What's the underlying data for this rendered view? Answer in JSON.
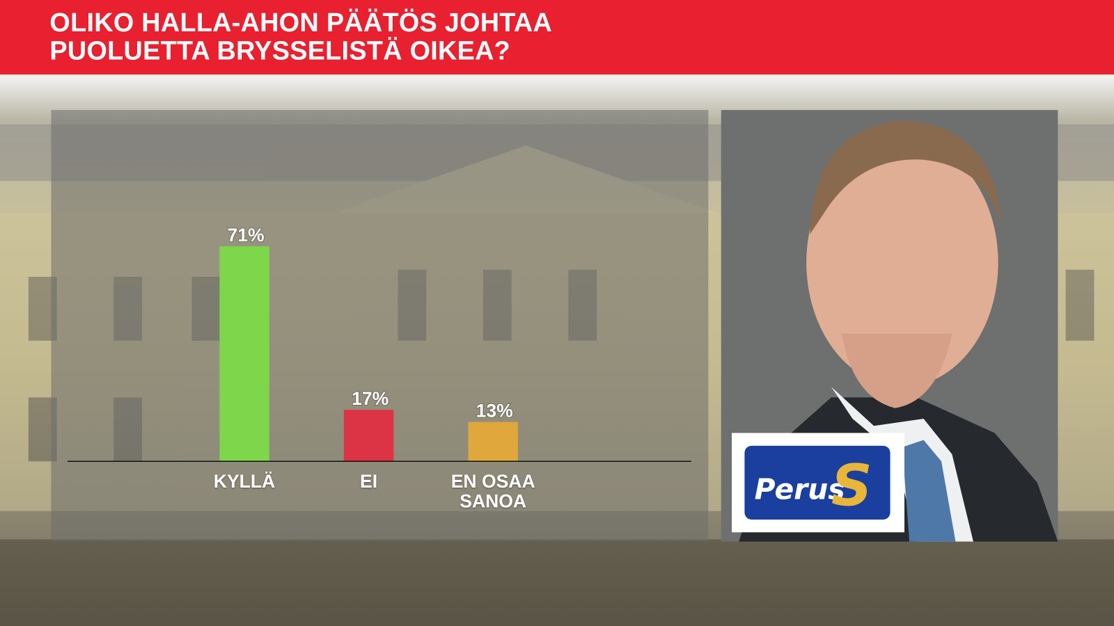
{
  "chart_data": {
    "type": "bar",
    "title": "OLIKO HALLA-AHON PÄÄTÖS JOHTAA PUOLUETTA BRYSSELISTÄ OIKEA?",
    "categories": [
      "KYLLÄ",
      "EI",
      "EN OSAA SANOA"
    ],
    "values": [
      71,
      17,
      13
    ],
    "value_labels": [
      "71%",
      "17%",
      "13%"
    ],
    "colors": [
      "#7ed64a",
      "#dc3444",
      "#e0a73c"
    ]
  },
  "logo": {
    "text": "Perus",
    "mark": "S"
  }
}
